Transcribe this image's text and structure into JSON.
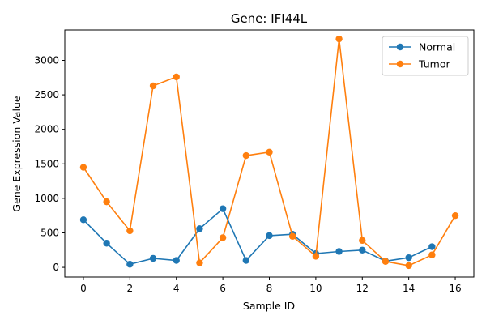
{
  "chart_data": {
    "type": "line",
    "title": "Gene: IFI44L",
    "xlabel": "Sample ID",
    "ylabel": "Gene Expression Value",
    "xlim": [
      -0.8,
      16.8
    ],
    "ylim": [
      -140,
      3440
    ],
    "xticks": [
      0,
      2,
      4,
      6,
      8,
      10,
      12,
      14,
      16
    ],
    "yticks": [
      0,
      500,
      1000,
      1500,
      2000,
      2500,
      3000
    ],
    "grid": false,
    "legend_position": "top-right",
    "series": [
      {
        "name": "Normal",
        "color": "#1f77b4",
        "x": [
          0,
          1,
          2,
          3,
          4,
          5,
          6,
          7,
          8,
          9,
          10,
          11,
          12,
          13,
          14,
          15
        ],
        "y": [
          690,
          350,
          45,
          130,
          100,
          560,
          850,
          100,
          460,
          480,
          200,
          230,
          250,
          90,
          140,
          300
        ]
      },
      {
        "name": "Tumor",
        "color": "#ff7f0e",
        "x": [
          0,
          1,
          2,
          3,
          4,
          5,
          6,
          7,
          8,
          9,
          10,
          11,
          12,
          13,
          14,
          15,
          16
        ],
        "y": [
          1450,
          950,
          530,
          2630,
          2760,
          65,
          430,
          1620,
          1670,
          450,
          160,
          3310,
          390,
          85,
          25,
          180,
          750
        ]
      }
    ]
  }
}
